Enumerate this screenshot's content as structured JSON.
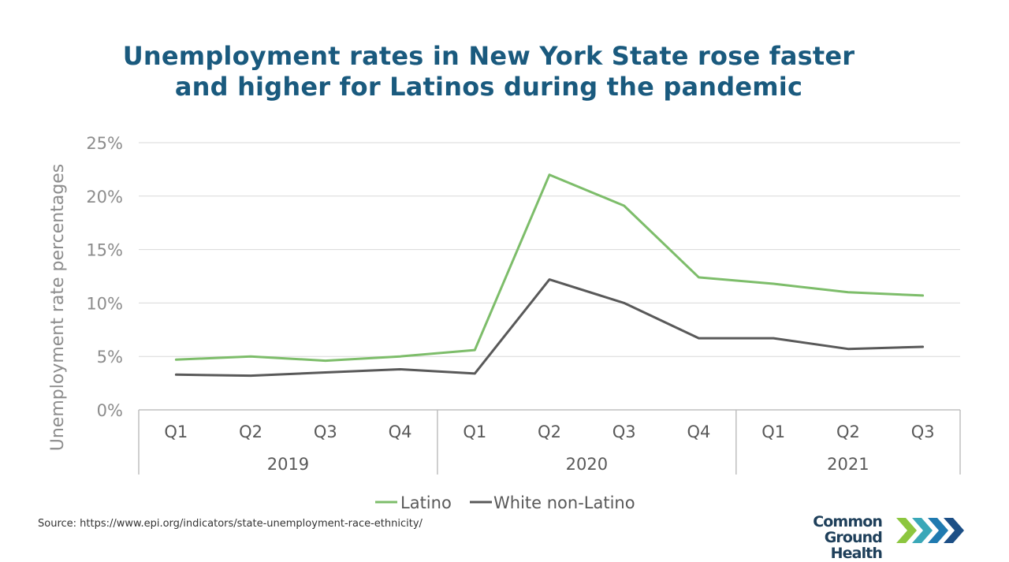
{
  "title": {
    "line1": "Unemployment rates in New York State rose faster",
    "line2": "and higher for Latinos during the pandemic"
  },
  "chart_data": {
    "type": "line",
    "title": "Unemployment rates in New York State rose faster and higher for Latinos during the pandemic",
    "ylabel": "Unemployment rate percentages",
    "xlabel": "",
    "ylim": [
      0,
      25
    ],
    "yticks": [
      0,
      5,
      10,
      15,
      20,
      25
    ],
    "ytick_labels": [
      "0%",
      "5%",
      "10%",
      "15%",
      "20%",
      "25%"
    ],
    "grid": true,
    "categories": [
      "Q1",
      "Q2",
      "Q3",
      "Q4",
      "Q1",
      "Q2",
      "Q3",
      "Q4",
      "Q1",
      "Q2",
      "Q3"
    ],
    "groups": [
      {
        "label": "2019",
        "count": 4
      },
      {
        "label": "2020",
        "count": 4
      },
      {
        "label": "2021",
        "count": 3
      }
    ],
    "series": [
      {
        "name": "Latino",
        "color": "#7dbd6a",
        "values": [
          4.7,
          5.0,
          4.6,
          5.0,
          5.6,
          22.0,
          19.1,
          12.4,
          11.8,
          11.0,
          10.7
        ]
      },
      {
        "name": "White non-Latino",
        "color": "#595959",
        "values": [
          3.3,
          3.2,
          3.5,
          3.8,
          3.4,
          12.2,
          10.0,
          6.7,
          6.7,
          5.7,
          5.9
        ]
      }
    ],
    "legend_position": "bottom"
  },
  "source": "Source: https://www.epi.org/indicators/state-unemployment-race-ethnicity/",
  "logo": {
    "line1": "Common Ground",
    "line2": "Health",
    "chevron_colors": [
      "#8cc63f",
      "#3aa8b8",
      "#1f7ab0",
      "#1c4f86"
    ]
  },
  "colors": {
    "title": "#1a5a7e",
    "axis_text": "#8c8c8c",
    "grid": "#d9d9d9"
  }
}
